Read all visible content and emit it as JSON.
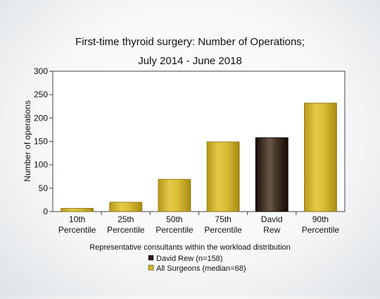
{
  "chart_data": {
    "type": "bar",
    "title": [
      "First-time thyroid surgery: Number of Operations;",
      "July 2014 - June 2018"
    ],
    "xlabel": "Representative consultants within the workload distribution",
    "ylabel": "Number of operations",
    "ylim": [
      0,
      300
    ],
    "yticks": [
      0,
      50,
      100,
      150,
      200,
      250,
      300
    ],
    "grid": false,
    "legend_position": "bottom-center",
    "categories": [
      [
        "10th",
        "Percentile"
      ],
      [
        "25th",
        "Percentile"
      ],
      [
        "50th",
        "Percentile"
      ],
      [
        "75th",
        "Percentile"
      ],
      [
        "David",
        "Rew"
      ],
      [
        "90th",
        "Percentile"
      ]
    ],
    "values": [
      7,
      20,
      69,
      149,
      158,
      232
    ],
    "bar_series": [
      1,
      1,
      1,
      1,
      0,
      1
    ],
    "series": [
      {
        "name": "David Rew (n=158)",
        "color": "#2b1a12"
      },
      {
        "name": "All Surgeons (median=68)",
        "color": "#d7b820"
      }
    ]
  }
}
